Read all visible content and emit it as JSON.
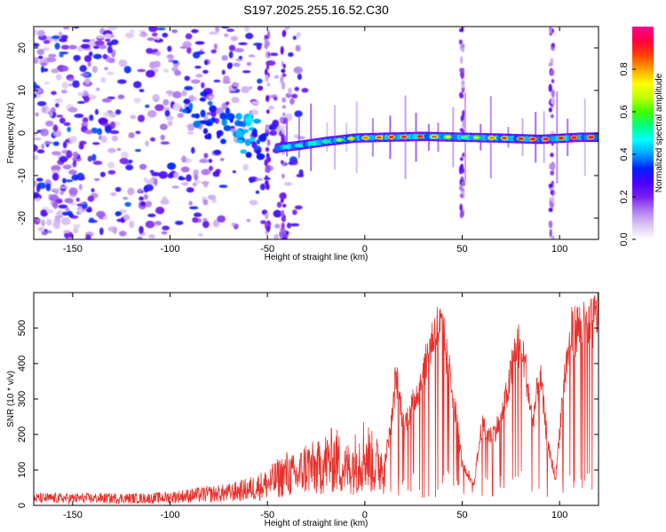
{
  "figure_title": "S197.2025.255.16.52.C30",
  "chart_data": [
    {
      "type": "heatmap",
      "title": "S197.2025.255.16.52.C30",
      "xlabel": "Height of straight line (km)",
      "ylabel": "Frequency (Hz)",
      "xlim": [
        -170,
        120
      ],
      "ylim": [
        -25,
        25
      ],
      "xticks": [
        "-150",
        "-100",
        "-50",
        "0",
        "50",
        "100"
      ],
      "yticks": [
        "20",
        "10",
        "0",
        "-10",
        "-20"
      ],
      "colorbar": {
        "label": "Normalized spectral amplitude",
        "range": [
          0.0,
          1.0
        ],
        "ticks": [
          "0.0",
          "0.2",
          "0.4",
          "0.6",
          "0.8"
        ],
        "colors": [
          "#ffffff",
          "#dcc6f5",
          "#b07ef0",
          "#7a1ff0",
          "#4a00ff",
          "#0020ff",
          "#00a0ff",
          "#00ffff",
          "#00ff80",
          "#40ff00",
          "#c0ff00",
          "#ffff00",
          "#ffa000",
          "#ff4000",
          "#ff0040",
          "#ff0090"
        ]
      },
      "features": {
        "noise_region_x": [
          -170,
          -45
        ],
        "signal_track": [
          {
            "x": -45,
            "freq": -3.5,
            "amp": 0.45
          },
          {
            "x": -35,
            "freq": -3.0,
            "amp": 0.5
          },
          {
            "x": -20,
            "freq": -2.0,
            "amp": 0.55
          },
          {
            "x": -5,
            "freq": -1.2,
            "amp": 0.8
          },
          {
            "x": 10,
            "freq": -1.0,
            "amp": 0.9
          },
          {
            "x": 30,
            "freq": -0.8,
            "amp": 0.95
          },
          {
            "x": 50,
            "freq": -1.0,
            "amp": 0.6
          },
          {
            "x": 70,
            "freq": -1.2,
            "amp": 0.9
          },
          {
            "x": 90,
            "freq": -1.5,
            "amp": 0.95
          },
          {
            "x": 110,
            "freq": -1.0,
            "amp": 0.95
          }
        ],
        "vertical_streaks_x": [
          -50,
          -42,
          50,
          96
        ]
      }
    },
    {
      "type": "line",
      "xlabel": "Height of straight line (km)",
      "ylabel": "SNR (10 * v/v)",
      "xlim": [
        -170,
        120
      ],
      "ylim": [
        0,
        600
      ],
      "xticks": [
        "-150",
        "-100",
        "-50",
        "0",
        "50",
        "100"
      ],
      "yticks": [
        "0",
        "100",
        "200",
        "300",
        "400",
        "500"
      ],
      "line_color": "#e8302a",
      "series": [
        {
          "name": "SNR",
          "x": [
            -170,
            -150,
            -130,
            -110,
            -95,
            -85,
            -70,
            -60,
            -50,
            -45,
            -40,
            -35,
            -30,
            -25,
            -20,
            -15,
            -10,
            -5,
            0,
            5,
            10,
            14,
            16,
            20,
            25,
            30,
            35,
            38,
            40,
            42,
            46,
            50,
            53,
            56,
            60,
            65,
            70,
            74,
            78,
            82,
            86,
            90,
            94,
            98,
            102,
            106,
            110,
            115,
            120
          ],
          "y": [
            20,
            20,
            20,
            20,
            25,
            30,
            35,
            45,
            60,
            75,
            90,
            80,
            110,
            100,
            120,
            130,
            100,
            120,
            150,
            110,
            120,
            250,
            380,
            230,
            300,
            380,
            490,
            520,
            500,
            430,
            300,
            120,
            80,
            60,
            230,
            200,
            250,
            350,
            480,
            420,
            240,
            380,
            170,
            80,
            350,
            500,
            520,
            510,
            560
          ]
        }
      ]
    }
  ]
}
